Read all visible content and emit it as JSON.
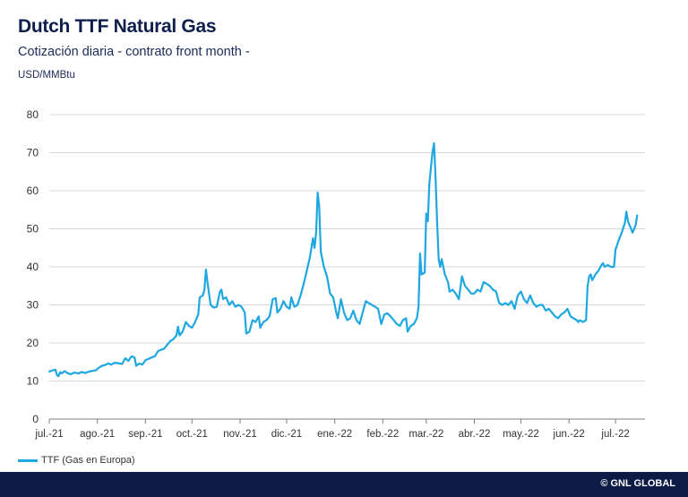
{
  "header": {
    "title": "Dutch TTF Natural Gas",
    "subtitle": "Cotización diaria - contrato front month -",
    "units": "USD/MMBtu"
  },
  "footer": {
    "credit": "© GNL GLOBAL"
  },
  "colors": {
    "line": "#1ea7e1",
    "grid": "#d9d9d9",
    "axis": "#7f7f7f",
    "footer_bg": "#0c1a45"
  },
  "chart_data": {
    "type": "line",
    "title": "Dutch TTF Natural Gas",
    "subtitle": "Cotización diaria - contrato front month -",
    "ylabel": "USD/MMBtu",
    "xlabel": "",
    "ylim": [
      0,
      80
    ],
    "yticks": [
      0,
      10,
      20,
      30,
      40,
      50,
      60,
      70,
      80
    ],
    "xlim": [
      "2021-07-01",
      "2022-07-20"
    ],
    "xticks": [
      {
        "date": "2021-07-01",
        "label": "jul.-21"
      },
      {
        "date": "2021-08-01",
        "label": "ago.-21"
      },
      {
        "date": "2021-09-01",
        "label": "sep.-21"
      },
      {
        "date": "2021-10-01",
        "label": "oct.-21"
      },
      {
        "date": "2021-11-01",
        "label": "nov.-21"
      },
      {
        "date": "2021-12-01",
        "label": "dic.-21"
      },
      {
        "date": "2022-01-01",
        "label": "ene.-22"
      },
      {
        "date": "2022-02-01",
        "label": "feb.-22"
      },
      {
        "date": "2022-03-01",
        "label": "mar.-22"
      },
      {
        "date": "2022-04-01",
        "label": "abr.-22"
      },
      {
        "date": "2022-05-01",
        "label": "may.-22"
      },
      {
        "date": "2022-06-01",
        "label": "jun.-22"
      },
      {
        "date": "2022-07-01",
        "label": "jul.-22"
      }
    ],
    "grid": true,
    "legend_position": "bottom-left",
    "series": [
      {
        "name": "TTF (Gas en Europa)",
        "color": "#1ea7e1",
        "points": [
          [
            "2021-07-01",
            12.5
          ],
          [
            "2021-07-03",
            12.8
          ],
          [
            "2021-07-05",
            13.0
          ],
          [
            "2021-07-06",
            11.5
          ],
          [
            "2021-07-07",
            11.3
          ],
          [
            "2021-07-08",
            12.3
          ],
          [
            "2021-07-09",
            12.0
          ],
          [
            "2021-07-11",
            12.6
          ],
          [
            "2021-07-13",
            12.0
          ],
          [
            "2021-07-15",
            11.8
          ],
          [
            "2021-07-17",
            12.2
          ],
          [
            "2021-07-20",
            12.0
          ],
          [
            "2021-07-22",
            12.4
          ],
          [
            "2021-07-24",
            12.1
          ],
          [
            "2021-07-26",
            12.4
          ],
          [
            "2021-07-28",
            12.6
          ],
          [
            "2021-07-31",
            12.8
          ],
          [
            "2021-08-02",
            13.5
          ],
          [
            "2021-08-04",
            14.0
          ],
          [
            "2021-08-06",
            14.2
          ],
          [
            "2021-08-08",
            14.6
          ],
          [
            "2021-08-10",
            14.3
          ],
          [
            "2021-08-12",
            14.8
          ],
          [
            "2021-08-14",
            14.7
          ],
          [
            "2021-08-17",
            14.5
          ],
          [
            "2021-08-19",
            16.0
          ],
          [
            "2021-08-21",
            15.3
          ],
          [
            "2021-08-23",
            16.5
          ],
          [
            "2021-08-25",
            16.2
          ],
          [
            "2021-08-26",
            14.0
          ],
          [
            "2021-08-28",
            14.6
          ],
          [
            "2021-08-30",
            14.3
          ],
          [
            "2021-09-01",
            15.5
          ],
          [
            "2021-09-03",
            15.8
          ],
          [
            "2021-09-05",
            16.2
          ],
          [
            "2021-09-07",
            16.5
          ],
          [
            "2021-09-09",
            17.8
          ],
          [
            "2021-09-11",
            18.2
          ],
          [
            "2021-09-13",
            18.5
          ],
          [
            "2021-09-15",
            19.5
          ],
          [
            "2021-09-17",
            20.5
          ],
          [
            "2021-09-19",
            21.0
          ],
          [
            "2021-09-21",
            22.0
          ],
          [
            "2021-09-22",
            24.3
          ],
          [
            "2021-09-23",
            22.0
          ],
          [
            "2021-09-25",
            23.0
          ],
          [
            "2021-09-27",
            25.5
          ],
          [
            "2021-09-29",
            24.5
          ],
          [
            "2021-10-01",
            24.0
          ],
          [
            "2021-10-03",
            25.5
          ],
          [
            "2021-10-05",
            27.5
          ],
          [
            "2021-10-06",
            32.0
          ],
          [
            "2021-10-08",
            32.5
          ],
          [
            "2021-10-09",
            34.0
          ],
          [
            "2021-10-10",
            39.3
          ],
          [
            "2021-10-11",
            36.0
          ],
          [
            "2021-10-13",
            30.0
          ],
          [
            "2021-10-15",
            29.3
          ],
          [
            "2021-10-17",
            29.5
          ],
          [
            "2021-10-19",
            33.5
          ],
          [
            "2021-10-20",
            34.0
          ],
          [
            "2021-10-21",
            31.5
          ],
          [
            "2021-10-23",
            32.0
          ],
          [
            "2021-10-25",
            30.0
          ],
          [
            "2021-10-27",
            31.0
          ],
          [
            "2021-10-29",
            29.5
          ],
          [
            "2021-10-31",
            30.0
          ],
          [
            "2021-11-02",
            29.5
          ],
          [
            "2021-11-04",
            28.0
          ],
          [
            "2021-11-05",
            22.5
          ],
          [
            "2021-11-07",
            23.0
          ],
          [
            "2021-11-09",
            26.0
          ],
          [
            "2021-11-11",
            25.5
          ],
          [
            "2021-11-13",
            27.0
          ],
          [
            "2021-11-14",
            24.0
          ],
          [
            "2021-11-16",
            25.5
          ],
          [
            "2021-11-18",
            26.0
          ],
          [
            "2021-11-20",
            27.0
          ],
          [
            "2021-11-22",
            31.5
          ],
          [
            "2021-11-24",
            31.8
          ],
          [
            "2021-11-25",
            28.0
          ],
          [
            "2021-11-27",
            29.0
          ],
          [
            "2021-11-29",
            31.0
          ],
          [
            "2021-12-01",
            29.5
          ],
          [
            "2021-12-03",
            29.0
          ],
          [
            "2021-12-04",
            32.0
          ],
          [
            "2021-12-06",
            29.5
          ],
          [
            "2021-12-08",
            30.0
          ],
          [
            "2021-12-10",
            32.5
          ],
          [
            "2021-12-12",
            35.5
          ],
          [
            "2021-12-14",
            39.0
          ],
          [
            "2021-12-16",
            42.5
          ],
          [
            "2021-12-18",
            47.5
          ],
          [
            "2021-12-19",
            45.0
          ],
          [
            "2021-12-20",
            49.0
          ],
          [
            "2021-12-21",
            59.5
          ],
          [
            "2021-12-22",
            56.0
          ],
          [
            "2021-12-23",
            44.0
          ],
          [
            "2021-12-25",
            40.0
          ],
          [
            "2021-12-27",
            37.5
          ],
          [
            "2021-12-29",
            33.0
          ],
          [
            "2021-12-31",
            32.0
          ],
          [
            "2022-01-02",
            28.0
          ],
          [
            "2022-01-03",
            26.5
          ],
          [
            "2022-01-05",
            31.5
          ],
          [
            "2022-01-07",
            28.0
          ],
          [
            "2022-01-09",
            26.0
          ],
          [
            "2022-01-11",
            26.5
          ],
          [
            "2022-01-13",
            28.5
          ],
          [
            "2022-01-15",
            26.0
          ],
          [
            "2022-01-17",
            25.0
          ],
          [
            "2022-01-19",
            28.0
          ],
          [
            "2022-01-21",
            31.0
          ],
          [
            "2022-01-23",
            30.5
          ],
          [
            "2022-01-25",
            30.0
          ],
          [
            "2022-01-27",
            29.5
          ],
          [
            "2022-01-29",
            29.0
          ],
          [
            "2022-01-31",
            25.0
          ],
          [
            "2022-02-02",
            27.5
          ],
          [
            "2022-02-04",
            27.8
          ],
          [
            "2022-02-06",
            27.0
          ],
          [
            "2022-02-08",
            26.0
          ],
          [
            "2022-02-10",
            25.0
          ],
          [
            "2022-02-12",
            24.5
          ],
          [
            "2022-02-14",
            26.0
          ],
          [
            "2022-02-16",
            26.5
          ],
          [
            "2022-02-17",
            23.0
          ],
          [
            "2022-02-19",
            24.5
          ],
          [
            "2022-02-21",
            25.0
          ],
          [
            "2022-02-23",
            26.5
          ],
          [
            "2022-02-24",
            29.5
          ],
          [
            "2022-02-25",
            43.5
          ],
          [
            "2022-02-26",
            38.0
          ],
          [
            "2022-02-28",
            38.5
          ],
          [
            "2022-03-01",
            54.0
          ],
          [
            "2022-03-02",
            52.0
          ],
          [
            "2022-03-03",
            62.0
          ],
          [
            "2022-03-04",
            66.0
          ],
          [
            "2022-03-05",
            70.0
          ],
          [
            "2022-03-06",
            72.5
          ],
          [
            "2022-03-07",
            63.5
          ],
          [
            "2022-03-08",
            52.0
          ],
          [
            "2022-03-09",
            42.0
          ],
          [
            "2022-03-10",
            40.0
          ],
          [
            "2022-03-11",
            42.0
          ],
          [
            "2022-03-13",
            38.0
          ],
          [
            "2022-03-15",
            36.0
          ],
          [
            "2022-03-16",
            33.5
          ],
          [
            "2022-03-18",
            34.0
          ],
          [
            "2022-03-20",
            33.0
          ],
          [
            "2022-03-22",
            31.5
          ],
          [
            "2022-03-24",
            37.5
          ],
          [
            "2022-03-26",
            35.0
          ],
          [
            "2022-03-28",
            34.0
          ],
          [
            "2022-03-30",
            33.0
          ],
          [
            "2022-04-01",
            33.0
          ],
          [
            "2022-04-03",
            34.0
          ],
          [
            "2022-04-05",
            33.5
          ],
          [
            "2022-04-07",
            36.0
          ],
          [
            "2022-04-09",
            35.5
          ],
          [
            "2022-04-11",
            35.0
          ],
          [
            "2022-04-13",
            34.0
          ],
          [
            "2022-04-15",
            33.5
          ],
          [
            "2022-04-17",
            30.5
          ],
          [
            "2022-04-19",
            30.0
          ],
          [
            "2022-04-21",
            30.5
          ],
          [
            "2022-04-23",
            30.0
          ],
          [
            "2022-04-25",
            31.0
          ],
          [
            "2022-04-27",
            29.0
          ],
          [
            "2022-04-29",
            32.5
          ],
          [
            "2022-05-01",
            33.5
          ],
          [
            "2022-05-03",
            31.5
          ],
          [
            "2022-05-05",
            30.5
          ],
          [
            "2022-05-07",
            32.5
          ],
          [
            "2022-05-09",
            30.5
          ],
          [
            "2022-05-11",
            29.5
          ],
          [
            "2022-05-13",
            30.0
          ],
          [
            "2022-05-15",
            30.0
          ],
          [
            "2022-05-17",
            28.5
          ],
          [
            "2022-05-19",
            29.0
          ],
          [
            "2022-05-21",
            28.0
          ],
          [
            "2022-05-23",
            27.0
          ],
          [
            "2022-05-25",
            26.5
          ],
          [
            "2022-05-27",
            27.5
          ],
          [
            "2022-05-29",
            28.0
          ],
          [
            "2022-05-31",
            29.0
          ],
          [
            "2022-06-02",
            27.0
          ],
          [
            "2022-06-04",
            26.5
          ],
          [
            "2022-06-06",
            26.0
          ],
          [
            "2022-06-07",
            25.5
          ],
          [
            "2022-06-08",
            26.0
          ],
          [
            "2022-06-10",
            25.5
          ],
          [
            "2022-06-12",
            26.0
          ],
          [
            "2022-06-13",
            35.0
          ],
          [
            "2022-06-14",
            37.5
          ],
          [
            "2022-06-15",
            38.0
          ],
          [
            "2022-06-16",
            36.5
          ],
          [
            "2022-06-18",
            38.0
          ],
          [
            "2022-06-20",
            39.0
          ],
          [
            "2022-06-22",
            40.5
          ],
          [
            "2022-06-23",
            41.0
          ],
          [
            "2022-06-24",
            40.0
          ],
          [
            "2022-06-26",
            40.5
          ],
          [
            "2022-06-28",
            40.0
          ],
          [
            "2022-06-30",
            40.0
          ],
          [
            "2022-07-01",
            44.5
          ],
          [
            "2022-07-03",
            47.0
          ],
          [
            "2022-07-05",
            49.0
          ],
          [
            "2022-07-07",
            51.5
          ],
          [
            "2022-07-08",
            54.5
          ],
          [
            "2022-07-09",
            52.0
          ],
          [
            "2022-07-11",
            50.0
          ],
          [
            "2022-07-12",
            49.0
          ],
          [
            "2022-07-14",
            51.0
          ],
          [
            "2022-07-15",
            53.5
          ]
        ]
      }
    ]
  }
}
